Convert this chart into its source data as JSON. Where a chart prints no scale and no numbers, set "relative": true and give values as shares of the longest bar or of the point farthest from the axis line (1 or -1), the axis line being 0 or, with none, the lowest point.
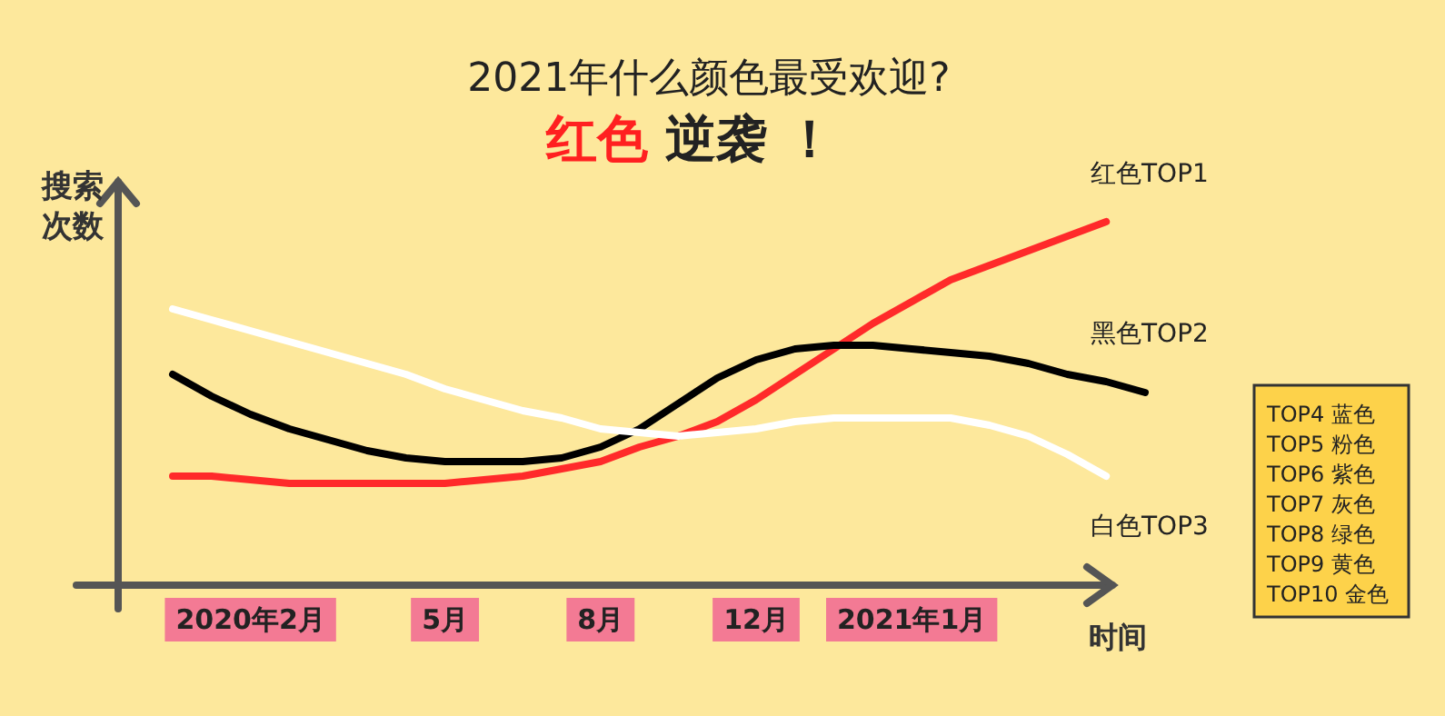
{
  "chart_data": {
    "type": "line",
    "title": "2021年什么颜色最受欢迎?",
    "subtitle": "红色 逆袭 ！",
    "xlabel": "时间",
    "ylabel": "搜索次数",
    "relative": true,
    "categories": [
      null,
      null,
      "2020年2月",
      null,
      null,
      null,
      null,
      "5月",
      null,
      null,
      null,
      "8月",
      null,
      null,
      null,
      "12月",
      null,
      null,
      null,
      "2021年1月",
      null,
      null,
      null,
      null,
      null,
      null
    ],
    "series": [
      {
        "name": "红色TOP1",
        "color": "#ff2a2a",
        "values": [
          0.3,
          0.3,
          0.29,
          0.28,
          0.28,
          0.28,
          0.28,
          0.28,
          0.29,
          0.3,
          0.32,
          0.34,
          0.38,
          0.41,
          0.45,
          0.51,
          0.58,
          0.65,
          0.72,
          0.78,
          0.84,
          0.88,
          0.92,
          0.96,
          1.0,
          null
        ]
      },
      {
        "name": "黑色TOP2",
        "color": "#000000",
        "values": [
          0.58,
          0.52,
          0.47,
          0.43,
          0.4,
          0.37,
          0.35,
          0.34,
          0.34,
          0.34,
          0.35,
          0.38,
          0.43,
          0.5,
          0.57,
          0.62,
          0.65,
          0.66,
          0.66,
          0.65,
          0.64,
          0.63,
          0.61,
          0.58,
          0.56,
          0.53
        ]
      },
      {
        "name": "白色TOP3",
        "color": "#ffffff",
        "values": [
          0.76,
          0.73,
          0.7,
          0.67,
          0.64,
          0.61,
          0.58,
          0.54,
          0.51,
          0.48,
          0.46,
          0.43,
          0.42,
          0.41,
          0.42,
          0.43,
          0.45,
          0.46,
          0.46,
          0.46,
          0.46,
          0.44,
          0.41,
          0.36,
          0.3,
          null
        ]
      }
    ],
    "annotations": [
      "TOP4 蓝色",
      "TOP5 粉色",
      "TOP6 紫色",
      "TOP7 灰色",
      "TOP8 绿色",
      "TOP9 黄色",
      "TOP10 金色"
    ]
  }
}
